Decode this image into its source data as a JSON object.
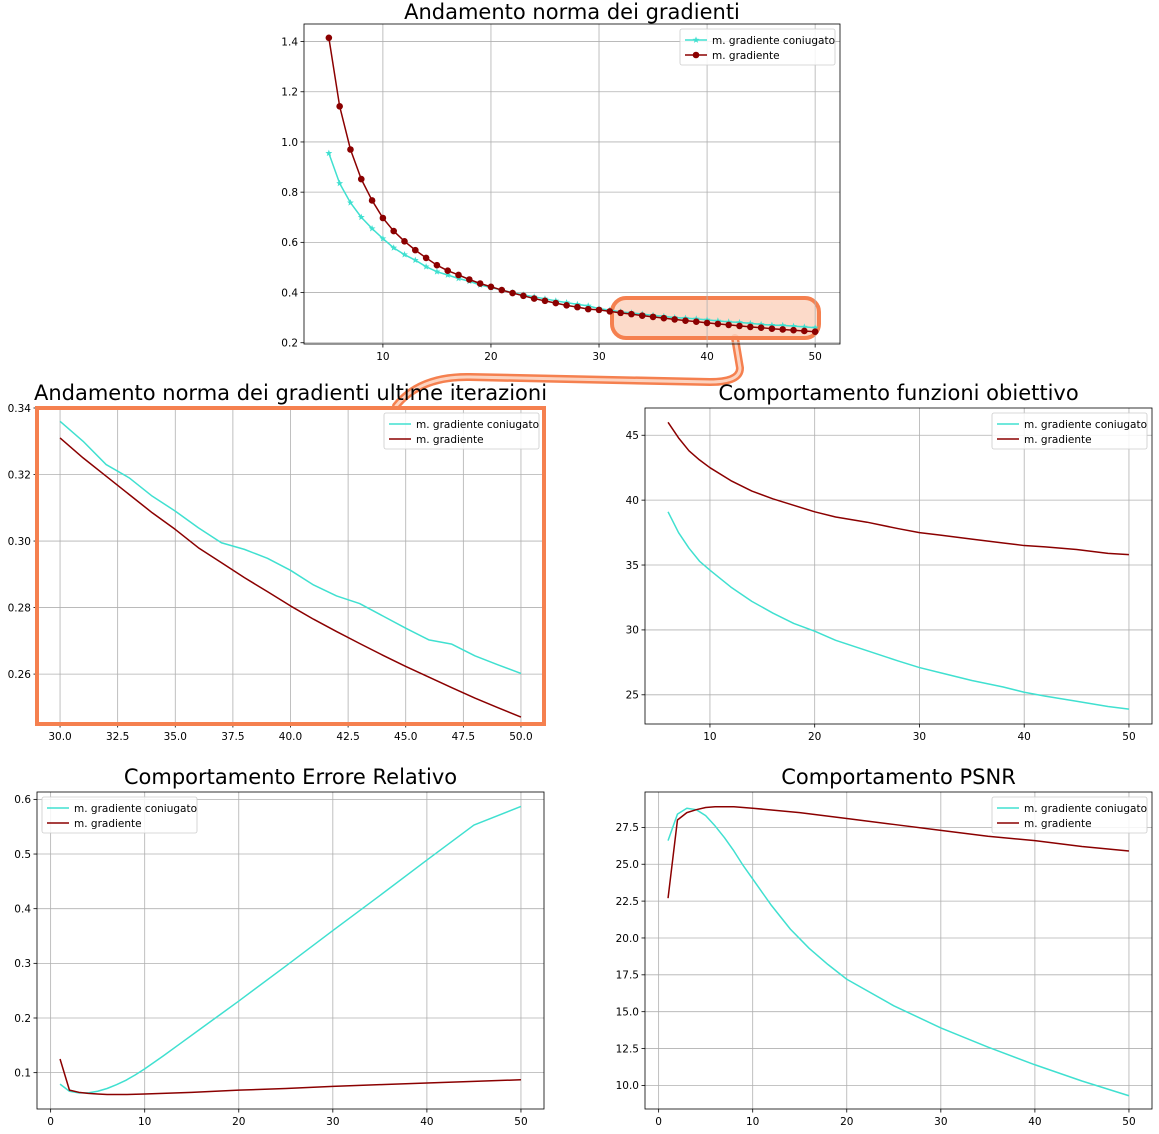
{
  "colors": {
    "conjugate": "#40e0d0",
    "gradient": "#8b0000",
    "highlight": "#f5804f",
    "highlight_fill": "#fcd3c0"
  },
  "legend": {
    "conjugate": "m. gradiente coniugato",
    "gradient": "m. gradiente"
  },
  "chart_data": [
    {
      "type": "line",
      "title": "Andamento norma dei gradienti",
      "xlabel": "",
      "ylabel": "",
      "xlim": [
        2.7,
        52.3
      ],
      "ylim": [
        0.195,
        1.47
      ],
      "xticks": [
        10,
        20,
        30,
        40,
        50
      ],
      "yticks": [
        0.2,
        0.4,
        0.6,
        0.8,
        1.0,
        1.2,
        1.4
      ],
      "ytick_labels": [
        "0.2",
        "0.4",
        "0.6",
        "0.8",
        "1.0",
        "1.2",
        "1.4"
      ],
      "grid": true,
      "legend_position": "top-right",
      "series": [
        {
          "name": "m. gradiente coniugato",
          "marker": "star",
          "x": [
            5,
            6,
            7,
            8,
            9,
            10,
            11,
            12,
            13,
            14,
            15,
            16,
            17,
            18,
            19,
            20,
            21,
            22,
            23,
            24,
            25,
            26,
            27,
            28,
            29,
            30,
            31,
            32,
            33,
            34,
            35,
            36,
            37,
            38,
            39,
            40,
            41,
            42,
            43,
            44,
            45,
            46,
            47,
            48,
            49,
            50
          ],
          "y": [
            0.955,
            0.835,
            0.758,
            0.7,
            0.655,
            0.615,
            0.578,
            0.551,
            0.529,
            0.503,
            0.483,
            0.47,
            0.456,
            0.445,
            0.43,
            0.42,
            0.41,
            0.4,
            0.391,
            0.383,
            0.375,
            0.367,
            0.36,
            0.353,
            0.347,
            0.336,
            0.33,
            0.323,
            0.319,
            0.314,
            0.309,
            0.305,
            0.3,
            0.298,
            0.295,
            0.291,
            0.287,
            0.283,
            0.281,
            0.277,
            0.273,
            0.27,
            0.269,
            0.266,
            0.263,
            0.26
          ]
        },
        {
          "name": "m. gradiente",
          "marker": "circle",
          "x": [
            5,
            6,
            7,
            8,
            9,
            10,
            11,
            12,
            13,
            14,
            15,
            16,
            17,
            18,
            19,
            20,
            21,
            22,
            23,
            24,
            25,
            26,
            27,
            28,
            29,
            30,
            31,
            32,
            33,
            34,
            35,
            36,
            37,
            38,
            39,
            40,
            41,
            42,
            43,
            44,
            45,
            46,
            47,
            48,
            49,
            50
          ],
          "y": [
            1.415,
            1.142,
            0.97,
            0.852,
            0.767,
            0.697,
            0.645,
            0.604,
            0.569,
            0.538,
            0.509,
            0.487,
            0.47,
            0.452,
            0.436,
            0.423,
            0.41,
            0.398,
            0.387,
            0.376,
            0.367,
            0.358,
            0.349,
            0.342,
            0.334,
            0.331,
            0.325,
            0.319,
            0.314,
            0.308,
            0.303,
            0.298,
            0.293,
            0.288,
            0.284,
            0.279,
            0.275,
            0.271,
            0.267,
            0.263,
            0.26,
            0.256,
            0.253,
            0.25,
            0.247,
            0.244
          ]
        }
      ]
    },
    {
      "type": "line",
      "title": "Andamento norma dei gradienti ultime iterazioni",
      "xlabel": "",
      "ylabel": "",
      "xlim": [
        29.0,
        51.0
      ],
      "ylim": [
        0.245,
        0.34
      ],
      "xticks": [
        30.0,
        32.5,
        35.0,
        37.5,
        40.0,
        42.5,
        45.0,
        47.5,
        50.0
      ],
      "xtick_labels": [
        "30.0",
        "32.5",
        "35.0",
        "37.5",
        "40.0",
        "42.5",
        "45.0",
        "47.5",
        "50.0"
      ],
      "yticks": [
        0.26,
        0.28,
        0.3,
        0.32,
        0.34
      ],
      "ytick_labels": [
        "0.26",
        "0.28",
        "0.30",
        "0.32",
        "0.34"
      ],
      "grid": true,
      "legend_position": "top-right",
      "series": [
        {
          "name": "m. gradiente coniugato",
          "x": [
            30,
            31,
            32,
            33,
            34,
            35,
            36,
            37,
            38,
            39,
            40,
            41,
            42,
            43,
            44,
            45,
            46,
            47,
            48,
            49,
            50
          ],
          "y": [
            0.336,
            0.33,
            0.323,
            0.319,
            0.3135,
            0.309,
            0.304,
            0.2995,
            0.2975,
            0.2948,
            0.2912,
            0.2868,
            0.2835,
            0.2812,
            0.2775,
            0.2738,
            0.2703,
            0.269,
            0.2655,
            0.2628,
            0.2602
          ]
        },
        {
          "name": "m. gradiente",
          "x": [
            30,
            31,
            32,
            33,
            34,
            35,
            36,
            37,
            38,
            39,
            40,
            41,
            42,
            43,
            44,
            45,
            46,
            47,
            48,
            49,
            50
          ],
          "y": [
            0.331,
            0.325,
            0.3195,
            0.314,
            0.3085,
            0.3035,
            0.298,
            0.2935,
            0.289,
            0.2848,
            0.2805,
            0.2765,
            0.2728,
            0.2692,
            0.2657,
            0.2623,
            0.2591,
            0.2559,
            0.2528,
            0.2499,
            0.2471
          ]
        }
      ]
    },
    {
      "type": "line",
      "title": "Comportamento funzioni obiettivo",
      "xlabel": "",
      "ylabel": "",
      "xlim": [
        3.8,
        52.2
      ],
      "ylim": [
        22.75,
        47.1
      ],
      "xticks": [
        10,
        20,
        30,
        40,
        50
      ],
      "yticks": [
        25,
        30,
        35,
        40,
        45
      ],
      "grid": true,
      "legend_position": "top-right",
      "series": [
        {
          "name": "m. gradiente coniugato",
          "x": [
            6,
            7,
            8,
            9,
            10,
            12,
            14,
            16,
            18,
            20,
            22,
            25,
            28,
            30,
            32,
            35,
            38,
            40,
            42,
            45,
            48,
            50
          ],
          "y": [
            39.1,
            37.5,
            36.3,
            35.3,
            34.6,
            33.3,
            32.2,
            31.3,
            30.5,
            29.9,
            29.2,
            28.4,
            27.6,
            27.1,
            26.7,
            26.1,
            25.6,
            25.2,
            24.9,
            24.5,
            24.1,
            23.9
          ]
        },
        {
          "name": "m. gradiente",
          "x": [
            6,
            7,
            8,
            9,
            10,
            12,
            14,
            16,
            18,
            20,
            22,
            25,
            28,
            30,
            32,
            35,
            38,
            40,
            42,
            45,
            48,
            50
          ],
          "y": [
            46.0,
            44.8,
            43.8,
            43.1,
            42.5,
            41.5,
            40.7,
            40.1,
            39.6,
            39.1,
            38.7,
            38.3,
            37.8,
            37.5,
            37.3,
            37.0,
            36.7,
            36.5,
            36.4,
            36.2,
            35.9,
            35.8
          ]
        }
      ]
    },
    {
      "type": "line",
      "title": "Comportamento Errore Relativo",
      "xlabel": "",
      "ylabel": "",
      "xlim": [
        -1.45,
        52.45
      ],
      "ylim": [
        0.0335,
        0.6135
      ],
      "xticks": [
        0,
        10,
        20,
        30,
        40,
        50
      ],
      "yticks": [
        0.1,
        0.2,
        0.3,
        0.4,
        0.5,
        0.6
      ],
      "ytick_labels": [
        "0.1",
        "0.2",
        "0.3",
        "0.4",
        "0.5",
        "0.6"
      ],
      "grid": true,
      "legend_position": "top-left",
      "series": [
        {
          "name": "m. gradiente coniugato",
          "x": [
            1,
            2,
            3,
            4,
            5,
            6,
            7,
            8,
            9,
            10,
            12,
            14,
            16,
            18,
            20,
            25,
            30,
            35,
            40,
            45,
            50
          ],
          "y": [
            0.079,
            0.066,
            0.063,
            0.063,
            0.066,
            0.071,
            0.078,
            0.086,
            0.096,
            0.107,
            0.131,
            0.156,
            0.181,
            0.206,
            0.231,
            0.295,
            0.36,
            0.424,
            0.489,
            0.553,
            0.587
          ]
        },
        {
          "name": "m. gradiente",
          "x": [
            1,
            2,
            3,
            4,
            5,
            6,
            7,
            8,
            10,
            15,
            20,
            25,
            30,
            35,
            40,
            45,
            50
          ],
          "y": [
            0.125,
            0.068,
            0.064,
            0.062,
            0.061,
            0.06,
            0.06,
            0.06,
            0.061,
            0.064,
            0.068,
            0.071,
            0.075,
            0.078,
            0.081,
            0.084,
            0.087
          ]
        }
      ]
    },
    {
      "type": "line",
      "title": "Comportamento PSNR",
      "xlabel": "",
      "ylabel": "",
      "xlim": [
        -1.45,
        52.45
      ],
      "ylim": [
        8.4,
        29.9
      ],
      "xticks": [
        0,
        10,
        20,
        30,
        40,
        50
      ],
      "yticks": [
        10.0,
        12.5,
        15.0,
        17.5,
        20.0,
        22.5,
        25.0,
        27.5
      ],
      "ytick_labels": [
        "10.0",
        "12.5",
        "15.0",
        "17.5",
        "20.0",
        "22.5",
        "25.0",
        "27.5"
      ],
      "grid": true,
      "legend_position": "top-right",
      "series": [
        {
          "name": "m. gradiente coniugato",
          "x": [
            1,
            2,
            3,
            4,
            5,
            6,
            7,
            8,
            9,
            10,
            12,
            14,
            16,
            18,
            20,
            25,
            30,
            35,
            40,
            45,
            50
          ],
          "y": [
            26.6,
            28.4,
            28.8,
            28.7,
            28.3,
            27.6,
            26.8,
            25.9,
            24.9,
            24.0,
            22.2,
            20.6,
            19.3,
            18.2,
            17.2,
            15.4,
            13.9,
            12.6,
            11.4,
            10.3,
            9.3
          ]
        },
        {
          "name": "m. gradiente",
          "x": [
            1,
            2,
            3,
            4,
            5,
            6,
            7,
            8,
            10,
            15,
            20,
            25,
            30,
            35,
            40,
            45,
            50
          ],
          "y": [
            22.7,
            28.0,
            28.5,
            28.7,
            28.85,
            28.9,
            28.9,
            28.9,
            28.8,
            28.5,
            28.1,
            27.7,
            27.3,
            26.9,
            26.6,
            26.2,
            25.9
          ]
        }
      ]
    }
  ]
}
